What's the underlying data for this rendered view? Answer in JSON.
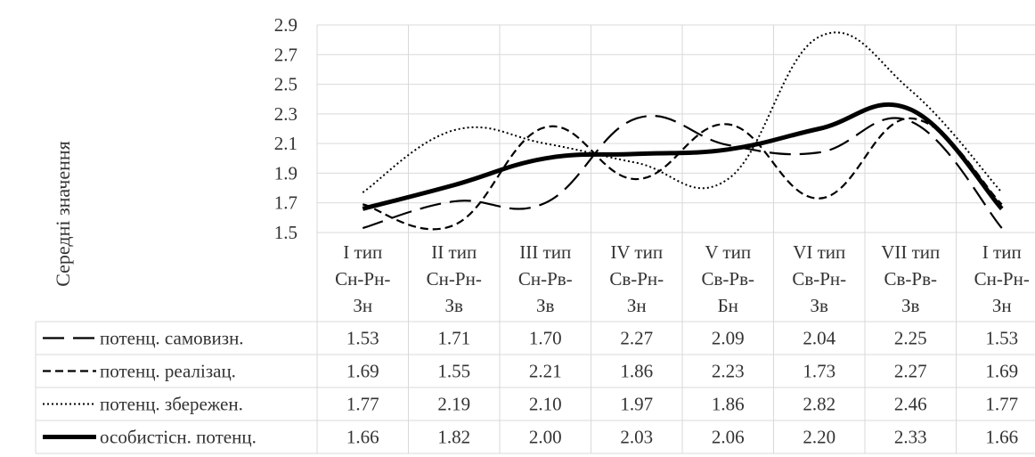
{
  "chart_data": {
    "type": "line",
    "ylabel": "Середні значення",
    "ylim": [
      1.5,
      2.9
    ],
    "yticks": [
      "1.5",
      "1.7",
      "1.9",
      "2.1",
      "2.3",
      "2.5",
      "2.7",
      "2.9"
    ],
    "grid": true,
    "categories": [
      [
        "I тип",
        "Сн-Рн-",
        "Зн"
      ],
      [
        "II тип",
        "Сн-Рн-",
        "Зв"
      ],
      [
        "III тип",
        "Сн-Рв-",
        "Зв"
      ],
      [
        "IV тип",
        "Св-Рн-",
        "Зн"
      ],
      [
        "V тип",
        "Св-Рв-",
        "Бн"
      ],
      [
        "VI тип",
        "Св-Рн-",
        "Зв"
      ],
      [
        "VII тип",
        "Св-Рв-",
        "Зв"
      ],
      [
        "I тип",
        "Сн-Рн-",
        "Зн"
      ]
    ],
    "series": [
      {
        "name": "потенц. самовизн.",
        "style": "longdash",
        "values": [
          1.53,
          1.71,
          1.7,
          2.27,
          2.09,
          2.04,
          2.25,
          1.53
        ],
        "labels": [
          "1.53",
          "1.71",
          "1.70",
          "2.27",
          "2.09",
          "2.04",
          "2.25",
          "1.53"
        ]
      },
      {
        "name": "потенц. реалізац.",
        "style": "dash",
        "values": [
          1.69,
          1.55,
          2.21,
          1.86,
          2.23,
          1.73,
          2.27,
          1.69
        ],
        "labels": [
          "1.69",
          "1.55",
          "2.21",
          "1.86",
          "2.23",
          "1.73",
          "2.27",
          "1.69"
        ]
      },
      {
        "name": "потенц. збережен.",
        "style": "dot",
        "values": [
          1.77,
          2.19,
          2.1,
          1.97,
          1.86,
          2.82,
          2.46,
          1.77
        ],
        "labels": [
          "1.77",
          "2.19",
          "2.10",
          "1.97",
          "1.86",
          "2.82",
          "2.46",
          "1.77"
        ]
      },
      {
        "name": "особистісн. потенц.",
        "style": "thick",
        "values": [
          1.66,
          1.82,
          2.0,
          2.03,
          2.06,
          2.2,
          2.33,
          1.66
        ],
        "labels": [
          "1.66",
          "1.82",
          "2.00",
          "2.03",
          "2.06",
          "2.20",
          "2.33",
          "1.66"
        ]
      }
    ]
  }
}
